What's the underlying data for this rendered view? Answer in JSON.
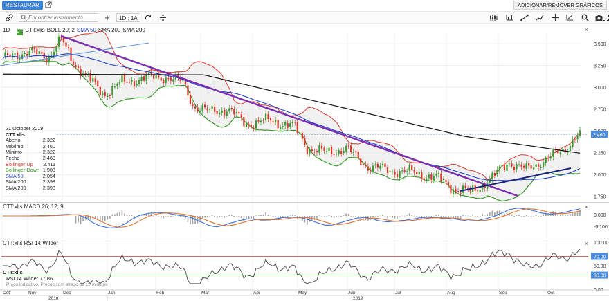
{
  "topbar": {
    "restore_label": "RESTAURAR",
    "add_remove_label": "ADICIONAR/REMOVER GRÁFICOS"
  },
  "toolbar": {
    "search_placeholder": "Encontrar instrumento",
    "interval_label": "1D : 1A",
    "icons": [
      "link-icon",
      "search-icon",
      "plus-icon",
      "refresh-icon",
      "compare-icon",
      "candles-icon",
      "line-tool-icon",
      "trend-icon",
      "crosshair-icon",
      "measure-icon",
      "zoom-icon",
      "camera-icon",
      "fullscreen-icon"
    ]
  },
  "main": {
    "period_label": "1D",
    "symbol": "CTT:xlis",
    "indicators": [
      {
        "label": "BOLL 20; 2",
        "color": "#222222"
      },
      {
        "label": "SMA 50",
        "color": "#1f3fcc"
      },
      {
        "label": "SMA 200",
        "color": "#222222"
      },
      {
        "label": "SMA 200",
        "color": "#222222"
      }
    ],
    "price_ticks": [
      "3.500",
      "3.250",
      "3.000",
      "2.750",
      "2.500",
      "2.250",
      "2.000",
      "1.750"
    ],
    "last_price_badge": "2.460"
  },
  "info": {
    "date": "21 October 2019",
    "symbol": "CTT:xlis",
    "rows": [
      {
        "label": "Aberto",
        "value": "2.322",
        "color": "#222222"
      },
      {
        "label": "Máximo",
        "value": "2.460",
        "color": "#222222"
      },
      {
        "label": "Mínimo",
        "value": "2.322",
        "color": "#222222"
      },
      {
        "label": "Fecho",
        "value": "2.460",
        "color": "#222222"
      },
      {
        "label": "Bollinger Up",
        "value": "2.411",
        "color": "#d9352b"
      },
      {
        "label": "Bollinger Down",
        "value": "1.903",
        "color": "#3a9a2a"
      },
      {
        "label": "SMA 50",
        "value": "2.054",
        "color": "#1f3fcc"
      },
      {
        "label": "SMA 200",
        "value": "2.398",
        "color": "#222222"
      },
      {
        "label": "SMA 200",
        "value": "2.398",
        "color": "#222222"
      }
    ]
  },
  "macd": {
    "legend": "CTT:xlis  MACD 26; 12; 9",
    "ticks": [
      "0.000",
      "-0.100"
    ]
  },
  "rsi": {
    "legend": "CTT:xlis  RSI 14 Wilder",
    "ticks": [
      "100.00",
      "70.00",
      "50.00",
      "30.00",
      "0.00"
    ],
    "footer_symbol": "CTT:xlis",
    "footer_value_label": "RSI 14 Wilder",
    "footer_value": "77.86",
    "disclaimer": "Preço indicativo. Preços com atraso de 15 minutos"
  },
  "time_axis": {
    "months": [
      "Oct",
      "Nov",
      "Dec",
      "Jan",
      "Feb",
      "Mar",
      "Apr",
      "May",
      "Jun",
      "Jul",
      "Aug",
      "Sep",
      "Oct"
    ],
    "years": [
      "2018",
      "2019"
    ]
  },
  "colors": {
    "accent": "#3b82d6",
    "bollinger_up": "#d9352b",
    "bollinger_down": "#3a9a2a",
    "sma50": "#1f3fcc",
    "sma200": "#111111",
    "trendline": "#7b2fb0",
    "support": "#1a237e",
    "candle_up": "#3a9a2a",
    "candle_down": "#d9352b",
    "macd_line": "#3a6fd8",
    "signal_line": "#e0702a"
  }
}
